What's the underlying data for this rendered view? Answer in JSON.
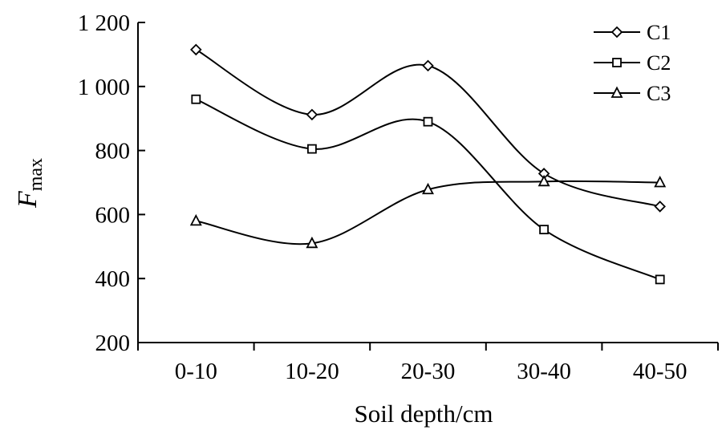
{
  "chart_data": {
    "type": "line",
    "title": "",
    "xlabel": "Soil  depth/cm",
    "ylabel": "F",
    "ylabel_sub": "max",
    "categories": [
      "0-10",
      "10-20",
      "20-30",
      "30-40",
      "40-50"
    ],
    "ylim": [
      200,
      1200
    ],
    "yticks": [
      200,
      400,
      600,
      800,
      1000,
      1200
    ],
    "ytick_labels": [
      "200",
      "400",
      "600",
      "800",
      "1 000",
      "1 200"
    ],
    "grid": false,
    "legend_position": "top-right",
    "series": [
      {
        "name": "C1",
        "marker": "diamond",
        "values": [
          1115,
          912,
          1065,
          728,
          625
        ]
      },
      {
        "name": "C2",
        "marker": "square",
        "values": [
          960,
          805,
          890,
          553,
          397
        ]
      },
      {
        "name": "C3",
        "marker": "triangle",
        "values": [
          580,
          510,
          678,
          703,
          700
        ]
      }
    ]
  }
}
